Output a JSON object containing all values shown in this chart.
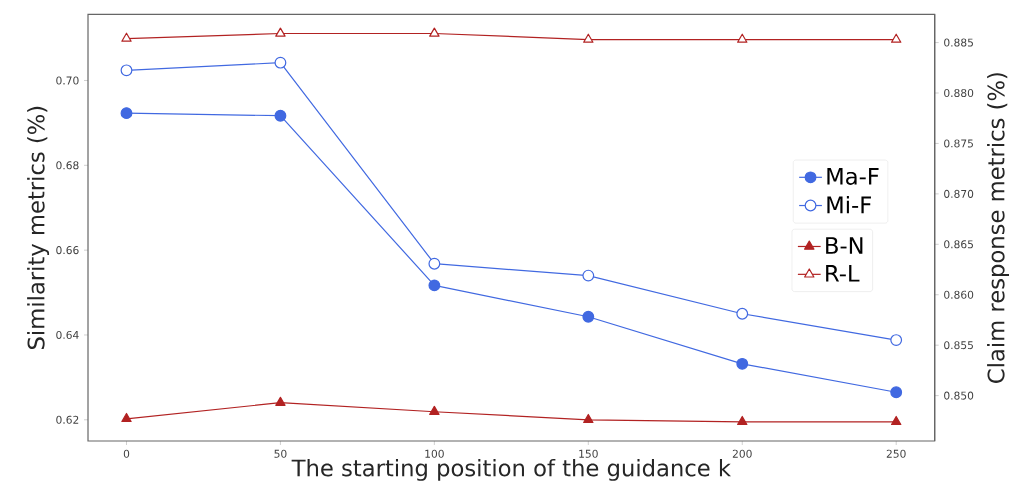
{
  "chart_data": {
    "type": "line",
    "xlabel": "The starting position of the guidance k",
    "ylabel": "Similarity metrics (%)",
    "y2label": "Claim response metrics (%)",
    "x": [
      0,
      50,
      100,
      150,
      200,
      250
    ],
    "series": [
      {
        "name": "Ma-F",
        "color": "#4169e1",
        "marker": "circle",
        "values": [
          0.6923,
          0.6917,
          0.6517,
          0.6443,
          0.6332,
          0.6265
        ]
      },
      {
        "name": "Mi-F",
        "color": "#4169e1",
        "marker": "circle-open",
        "values": [
          0.7024,
          0.7042,
          0.6568,
          0.654,
          0.645,
          0.6388
        ]
      },
      {
        "name": "B-N",
        "color": "#b22222",
        "marker": "triangle",
        "axis": "y2",
        "values": [
          0.8477,
          0.8493,
          0.8484,
          0.8476,
          0.8474,
          0.8474
        ]
      },
      {
        "name": "R-L",
        "color": "#b22222",
        "marker": "triangle-open",
        "axis": "y2",
        "values": [
          0.8854,
          0.8859,
          0.8859,
          0.8853,
          0.8853,
          0.8853
        ]
      }
    ],
    "xlim": [
      -12.5,
      262.5
    ],
    "xticks": [
      0,
      50,
      100,
      150,
      200,
      250
    ],
    "ylim": [
      0.615,
      0.7156
    ],
    "yticks": [
      {
        "value": 0.62,
        "label": "0.62"
      },
      {
        "value": 0.64,
        "label": "0.64"
      },
      {
        "value": 0.66,
        "label": "0.66"
      },
      {
        "value": 0.68,
        "label": "0.68"
      },
      {
        "value": 0.7,
        "label": "0.70"
      }
    ],
    "y2lim": [
      0.8455,
      0.8878
    ],
    "y2ticks": [
      {
        "value": 0.85,
        "label": "0.850"
      },
      {
        "value": 0.855,
        "label": "0.855"
      },
      {
        "value": 0.86,
        "label": "0.860"
      },
      {
        "value": 0.865,
        "label": "0.865"
      },
      {
        "value": 0.87,
        "label": "0.870"
      },
      {
        "value": 0.875,
        "label": "0.875"
      },
      {
        "value": 0.88,
        "label": "0.880"
      },
      {
        "value": 0.885,
        "label": "0.885"
      }
    ],
    "legend": "right",
    "line_style": "solid"
  }
}
